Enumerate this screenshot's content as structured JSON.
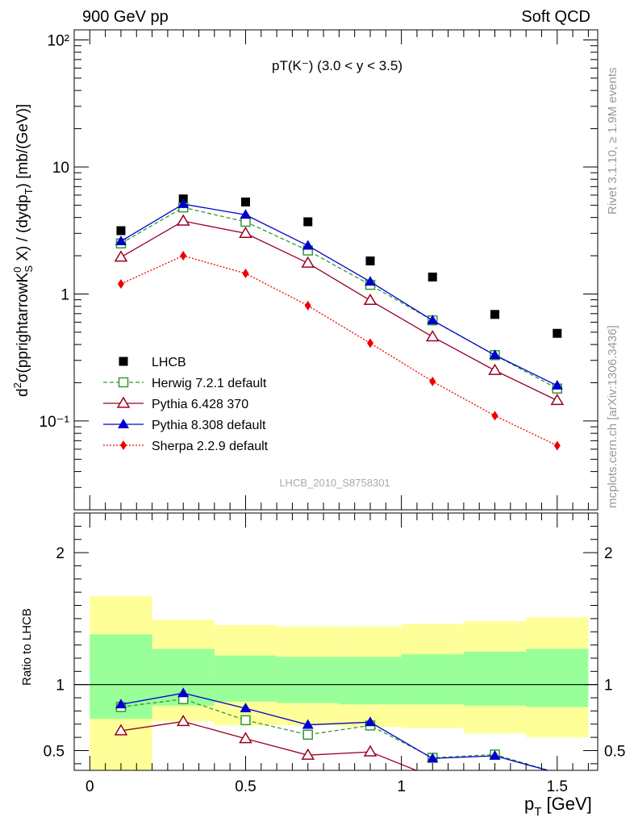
{
  "header": {
    "left": "900 GeV pp",
    "right": "Soft QCD"
  },
  "side": {
    "top": "Rivet 3.1.10, ≥ 1.9M events",
    "bottom": "mcplots.cern.ch [arXiv:1306.3436]"
  },
  "watermark": "LHCB_2010_S8758301",
  "chart_data": [
    {
      "type": "line",
      "title": "pT(K⁻) (3.0 < y < 3.5)",
      "ylabel": "d²σ(pprightarrowK⁰S X) / (dydpT) [mb/(GeV)]",
      "ylabel_display": {
        "d2": "d",
        "sup2": "2",
        "sigma": "σ(pprightarrowK",
        "sup0": "0",
        "subS": "S",
        "mid": " X) / (dydp",
        "subT": "T",
        "end": ") [mb/(GeV)]"
      },
      "yscale": "log",
      "ylim": [
        0.02,
        120
      ],
      "xlim": [
        -0.05,
        1.63
      ],
      "ytick_labels": [
        "10⁻¹",
        "1",
        "10",
        "10²"
      ],
      "legend_position": "bottom-left",
      "x": [
        0.1,
        0.3,
        0.5,
        0.7,
        0.9,
        1.1,
        1.3,
        1.5
      ],
      "series": [
        {
          "name": "LHCB",
          "color": "#000000",
          "marker": "square-filled",
          "line": "none",
          "values": [
            3.15,
            5.6,
            5.3,
            3.7,
            1.82,
            1.36,
            0.69,
            0.49
          ]
        },
        {
          "name": "Herwig 7.2.1 default",
          "color": "#339933",
          "marker": "square-open",
          "line": "dashed",
          "values": [
            2.5,
            4.8,
            3.7,
            2.2,
            1.18,
            0.62,
            0.33,
            0.18
          ]
        },
        {
          "name": "Pythia 6.428 370",
          "color": "#990022",
          "marker": "triangle-open",
          "line": "solid",
          "values": [
            1.95,
            3.75,
            3.0,
            1.75,
            0.89,
            0.46,
            0.25,
            0.145
          ]
        },
        {
          "name": "Pythia 8.308 default",
          "color": "#0000cc",
          "marker": "triangle-filled",
          "line": "solid",
          "values": [
            2.6,
            5.1,
            4.2,
            2.4,
            1.25,
            0.62,
            0.33,
            0.19
          ]
        },
        {
          "name": "Sherpa 2.2.9 default",
          "color": "#ee0000",
          "marker": "diamond-filled",
          "line": "dotted",
          "values": [
            1.2,
            2.0,
            1.45,
            0.81,
            0.41,
            0.205,
            0.11,
            0.064
          ]
        }
      ]
    },
    {
      "type": "line",
      "ylabel": "Ratio to LHCB",
      "xlabel": "p",
      "xlabel_sub": "T",
      "xlabel_unit": " [GeV]",
      "ylim": [
        0.35,
        2.3
      ],
      "xlim": [
        -0.05,
        1.63
      ],
      "xtick_labels": [
        "0",
        "0.5",
        "1",
        "1.5"
      ],
      "ytick_labels": [
        "0.5",
        "1",
        "2"
      ],
      "bands": {
        "edges": [
          0.0,
          0.2,
          0.4,
          0.6,
          0.8,
          1.0,
          1.2,
          1.4,
          1.6
        ],
        "yellow": [
          [
            0.35,
            1.67
          ],
          [
            0.72,
            1.49
          ],
          [
            0.69,
            1.45
          ],
          [
            0.69,
            1.44
          ],
          [
            0.68,
            1.44
          ],
          [
            0.67,
            1.46
          ],
          [
            0.63,
            1.48
          ],
          [
            0.6,
            1.51
          ]
        ],
        "green": [
          [
            0.74,
            1.38
          ],
          [
            0.84,
            1.27
          ],
          [
            0.87,
            1.22
          ],
          [
            0.86,
            1.21
          ],
          [
            0.85,
            1.21
          ],
          [
            0.85,
            1.23
          ],
          [
            0.84,
            1.25
          ],
          [
            0.83,
            1.27
          ]
        ]
      },
      "series": [
        {
          "name": "Herwig 7.2.1 default",
          "values": [
            0.83,
            0.89,
            0.73,
            0.62,
            0.69,
            0.445,
            0.47,
            0.33
          ]
        },
        {
          "name": "Pythia 6.428 370",
          "values": [
            0.65,
            0.72,
            0.59,
            0.465,
            0.49,
            0.3,
            0.3,
            0.3
          ]
        },
        {
          "name": "Pythia 8.308 default",
          "values": [
            0.85,
            0.935,
            0.82,
            0.695,
            0.715,
            0.44,
            0.46,
            0.33
          ]
        }
      ]
    }
  ]
}
